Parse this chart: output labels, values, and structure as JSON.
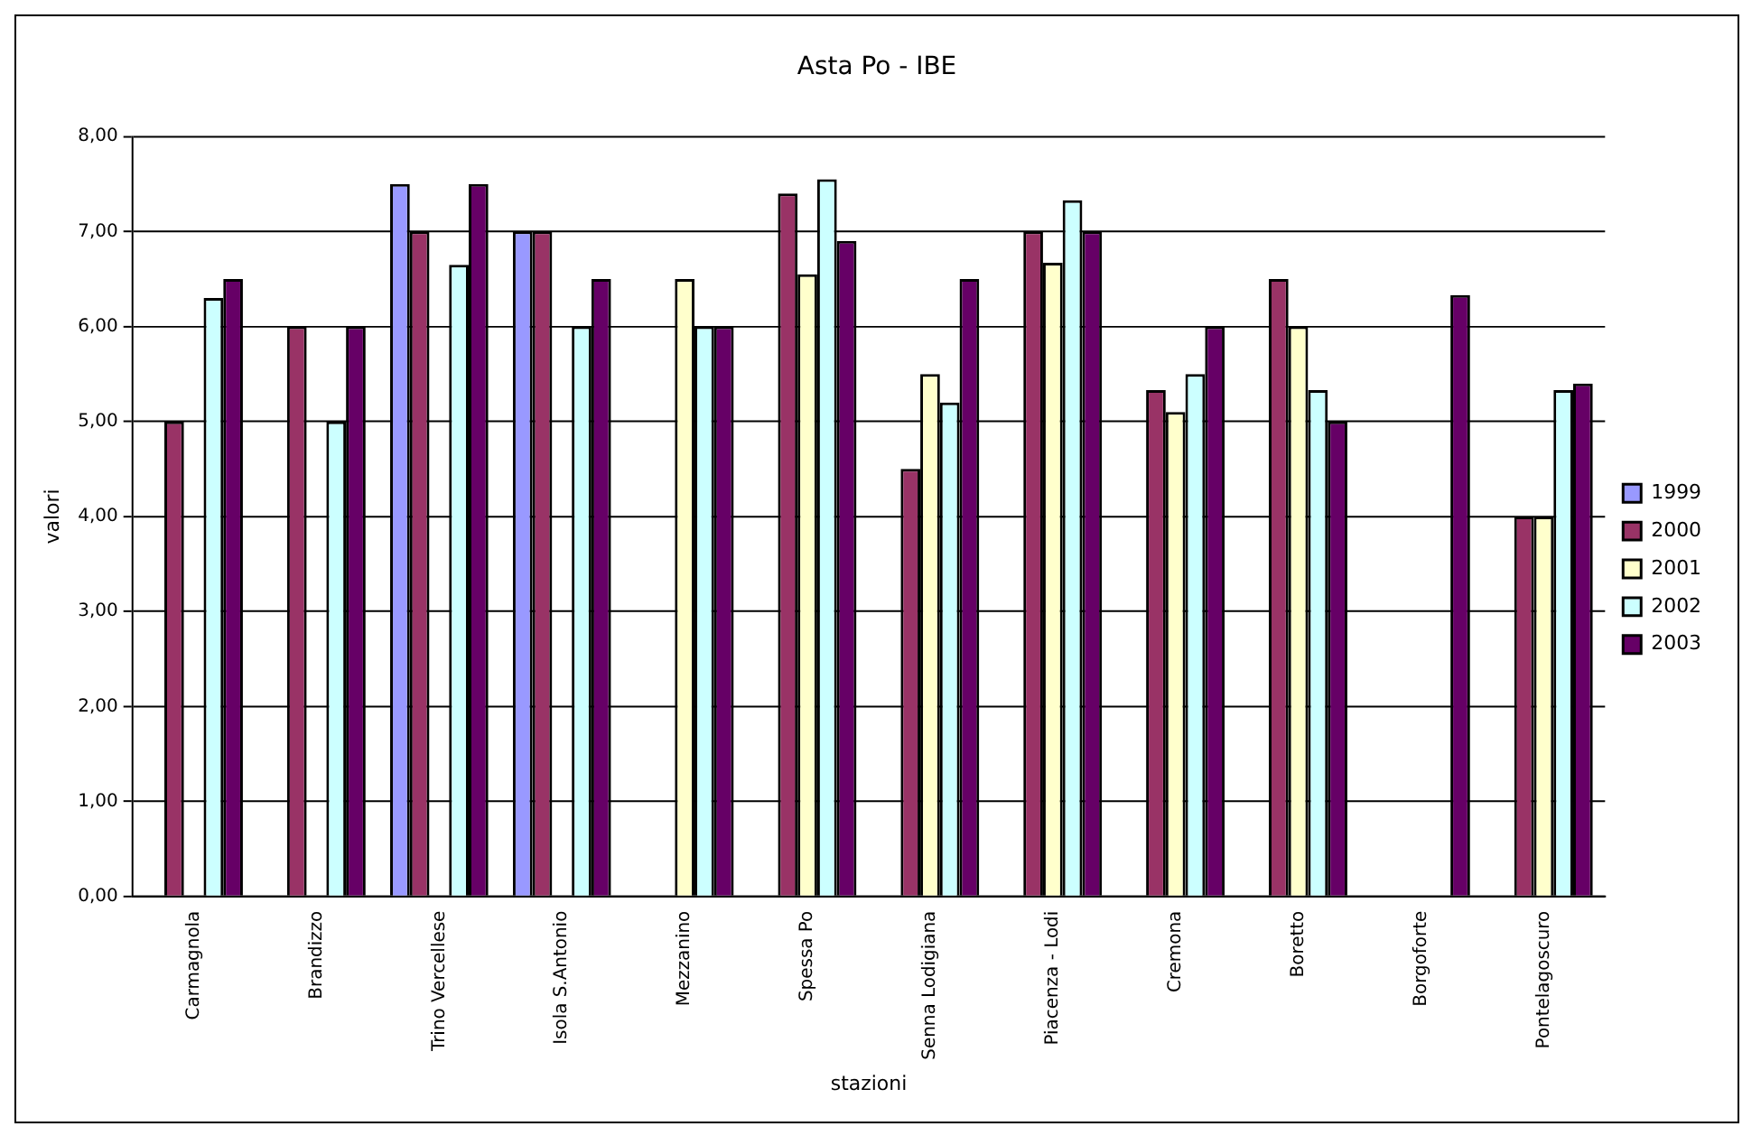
{
  "chart_data": {
    "type": "bar",
    "title": "Asta Po - IBE",
    "xlabel": "stazioni",
    "ylabel": "valori",
    "categories": [
      "Carmagnola",
      "Brandizzo",
      "Trino Vercellese",
      "Isola S.Antonio",
      "Mezzanino",
      "Spessa Po",
      "Senna Lodigiana",
      "Piacenza - Lodi",
      "Cremona",
      "Boretto",
      "Borgoforte",
      "Pontelagoscuro"
    ],
    "series": [
      {
        "name": "1999",
        "color": "#9999ff",
        "values": [
          null,
          null,
          7.5,
          7.0,
          null,
          null,
          null,
          null,
          null,
          null,
          null,
          null
        ]
      },
      {
        "name": "2000",
        "color": "#993366",
        "values": [
          5.0,
          6.0,
          7.0,
          7.0,
          null,
          7.4,
          4.5,
          7.0,
          5.33,
          6.5,
          null,
          4.0
        ]
      },
      {
        "name": "2001",
        "color": "#ffffcc",
        "values": [
          null,
          null,
          null,
          null,
          6.5,
          6.55,
          5.5,
          6.67,
          5.1,
          6.0,
          null,
          4.0
        ]
      },
      {
        "name": "2002",
        "color": "#ccffff",
        "values": [
          6.3,
          5.0,
          6.65,
          6.0,
          6.0,
          7.55,
          5.2,
          7.33,
          5.5,
          5.33,
          null,
          5.33
        ]
      },
      {
        "name": "2003",
        "color": "#660066",
        "values": [
          6.5,
          6.0,
          7.5,
          6.5,
          6.0,
          6.9,
          6.5,
          7.0,
          6.0,
          5.0,
          6.33,
          5.4
        ]
      }
    ],
    "ylim": [
      0,
      8
    ],
    "yticks": [
      {
        "value": 0,
        "label": "0,00"
      },
      {
        "value": 1,
        "label": "1,00"
      },
      {
        "value": 2,
        "label": "2,00"
      },
      {
        "value": 3,
        "label": "3,00"
      },
      {
        "value": 4,
        "label": "4,00"
      },
      {
        "value": 5,
        "label": "5,00"
      },
      {
        "value": 6,
        "label": "6,00"
      },
      {
        "value": 7,
        "label": "7,00"
      },
      {
        "value": 8,
        "label": "8,00"
      }
    ],
    "grid": "y",
    "legend": "right"
  }
}
